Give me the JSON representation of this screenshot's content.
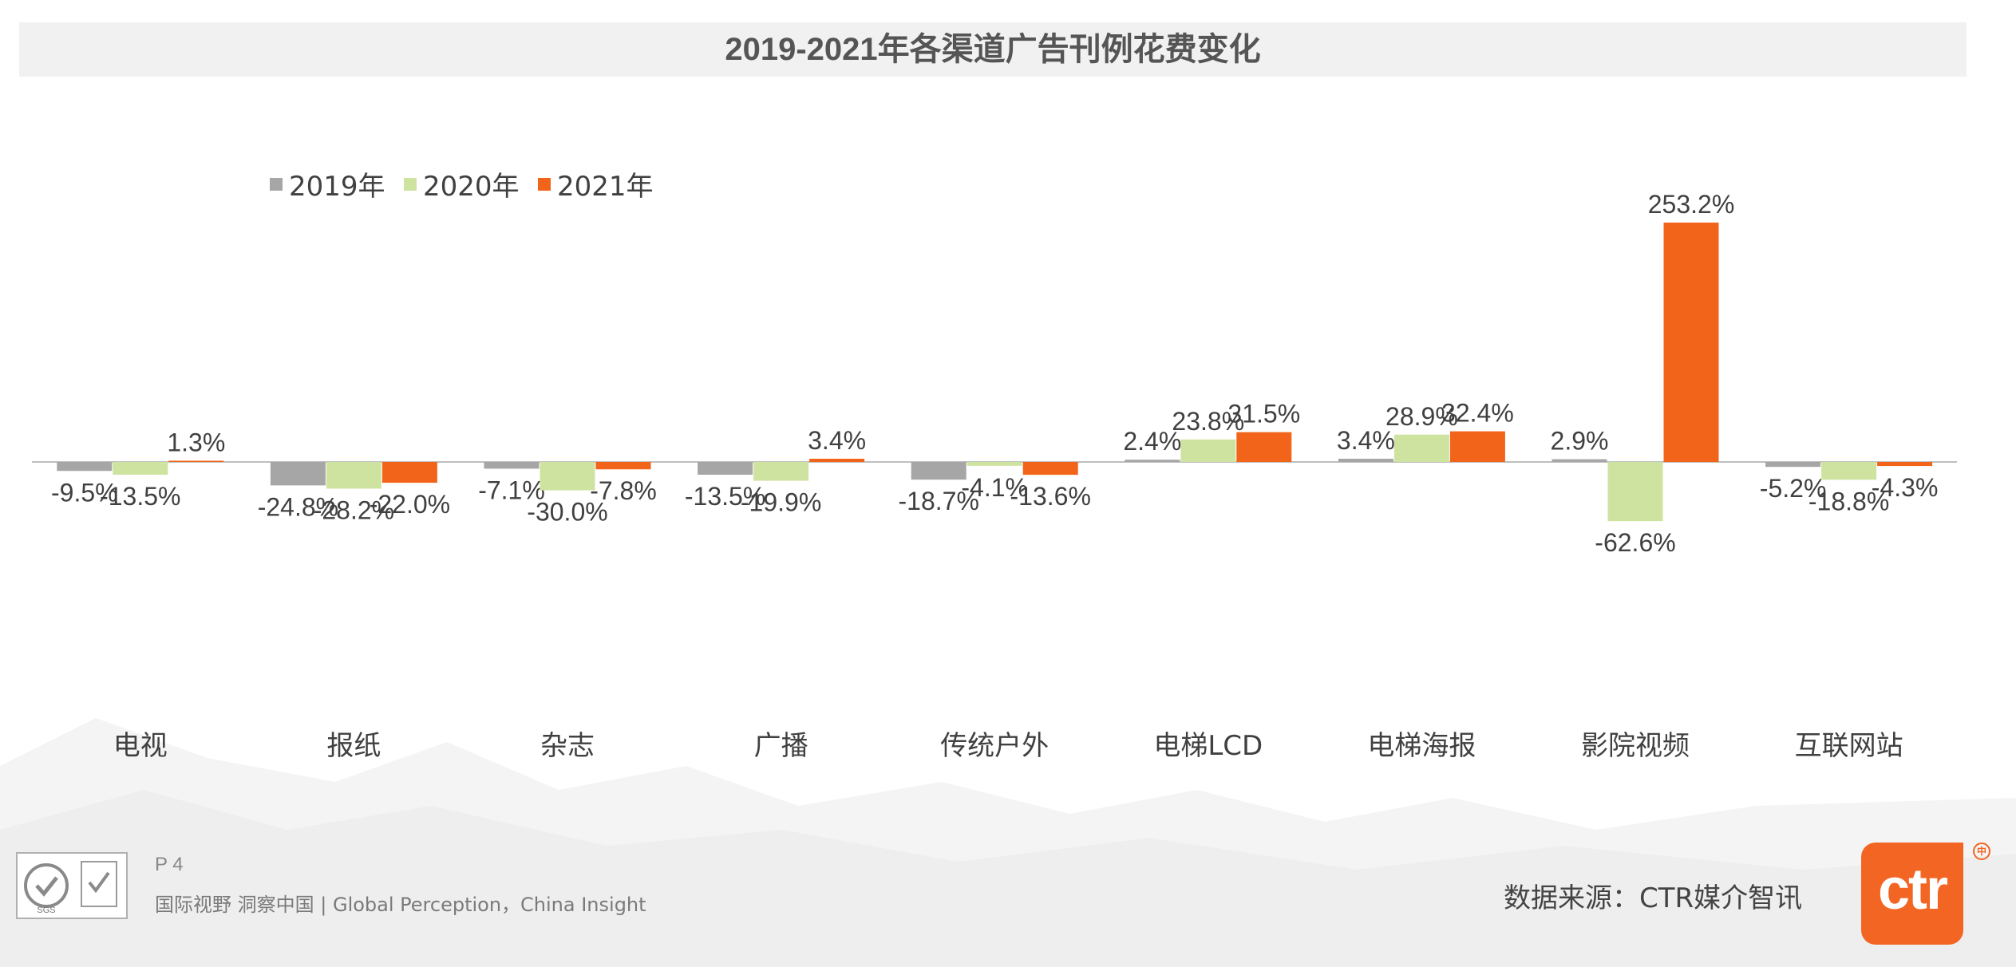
{
  "chart_data": {
    "type": "bar",
    "title": "2019-2021年各渠道广告刊例花费变化",
    "categories": [
      "电视",
      "报纸",
      "杂志",
      "广播",
      "传统户外",
      "电梯LCD",
      "电梯海报",
      "影院视频",
      "互联网站"
    ],
    "series": [
      {
        "name": "2019年",
        "color": "#a6a6a6",
        "values": [
          -9.5,
          -24.8,
          -7.1,
          -13.5,
          -18.7,
          2.4,
          3.4,
          2.9,
          -5.2
        ],
        "labels": [
          "-9.5%",
          "-24.8%",
          "-7.1%",
          "-13.5%",
          "-18.7%",
          "2.4%",
          "3.4%",
          "2.9%",
          "-5.2%"
        ]
      },
      {
        "name": "2020年",
        "color": "#cfe3a1",
        "values": [
          -13.5,
          -28.2,
          -30.0,
          -19.9,
          -4.1,
          23.8,
          28.9,
          -62.6,
          -18.8
        ],
        "labels": [
          "-13.5%",
          "-28.2%",
          "-30.0%",
          "-19.9%",
          "-4.1%",
          "23.8%",
          "28.9%",
          "-62.6%",
          "-18.8%"
        ]
      },
      {
        "name": "2021年",
        "color": "#f26419",
        "values": [
          1.3,
          -22.0,
          -7.8,
          3.4,
          -13.6,
          31.5,
          32.4,
          253.2,
          -4.3
        ],
        "labels": [
          "1.3%",
          "-22.0%",
          "-7.8%",
          "3.4%",
          "-13.6%",
          "31.5%",
          "32.4%",
          "253.2%",
          "-4.3%"
        ]
      }
    ],
    "xlabel": "",
    "ylabel": "",
    "ylim": [
      -100,
      260
    ],
    "legend_position": "top-left",
    "grid": false
  },
  "footer": {
    "page": "P 4",
    "slogan": "国际视野  洞察中国 |  Global Perception，China Insight",
    "source": "数据来源：CTR媒介智讯",
    "logo_text": "ctr",
    "logo_mark": "中",
    "cert_text": "SGS"
  },
  "colors": {
    "accent": "#f26522",
    "title_band": "#f1f1f1",
    "axis": "#bfbfbf"
  }
}
